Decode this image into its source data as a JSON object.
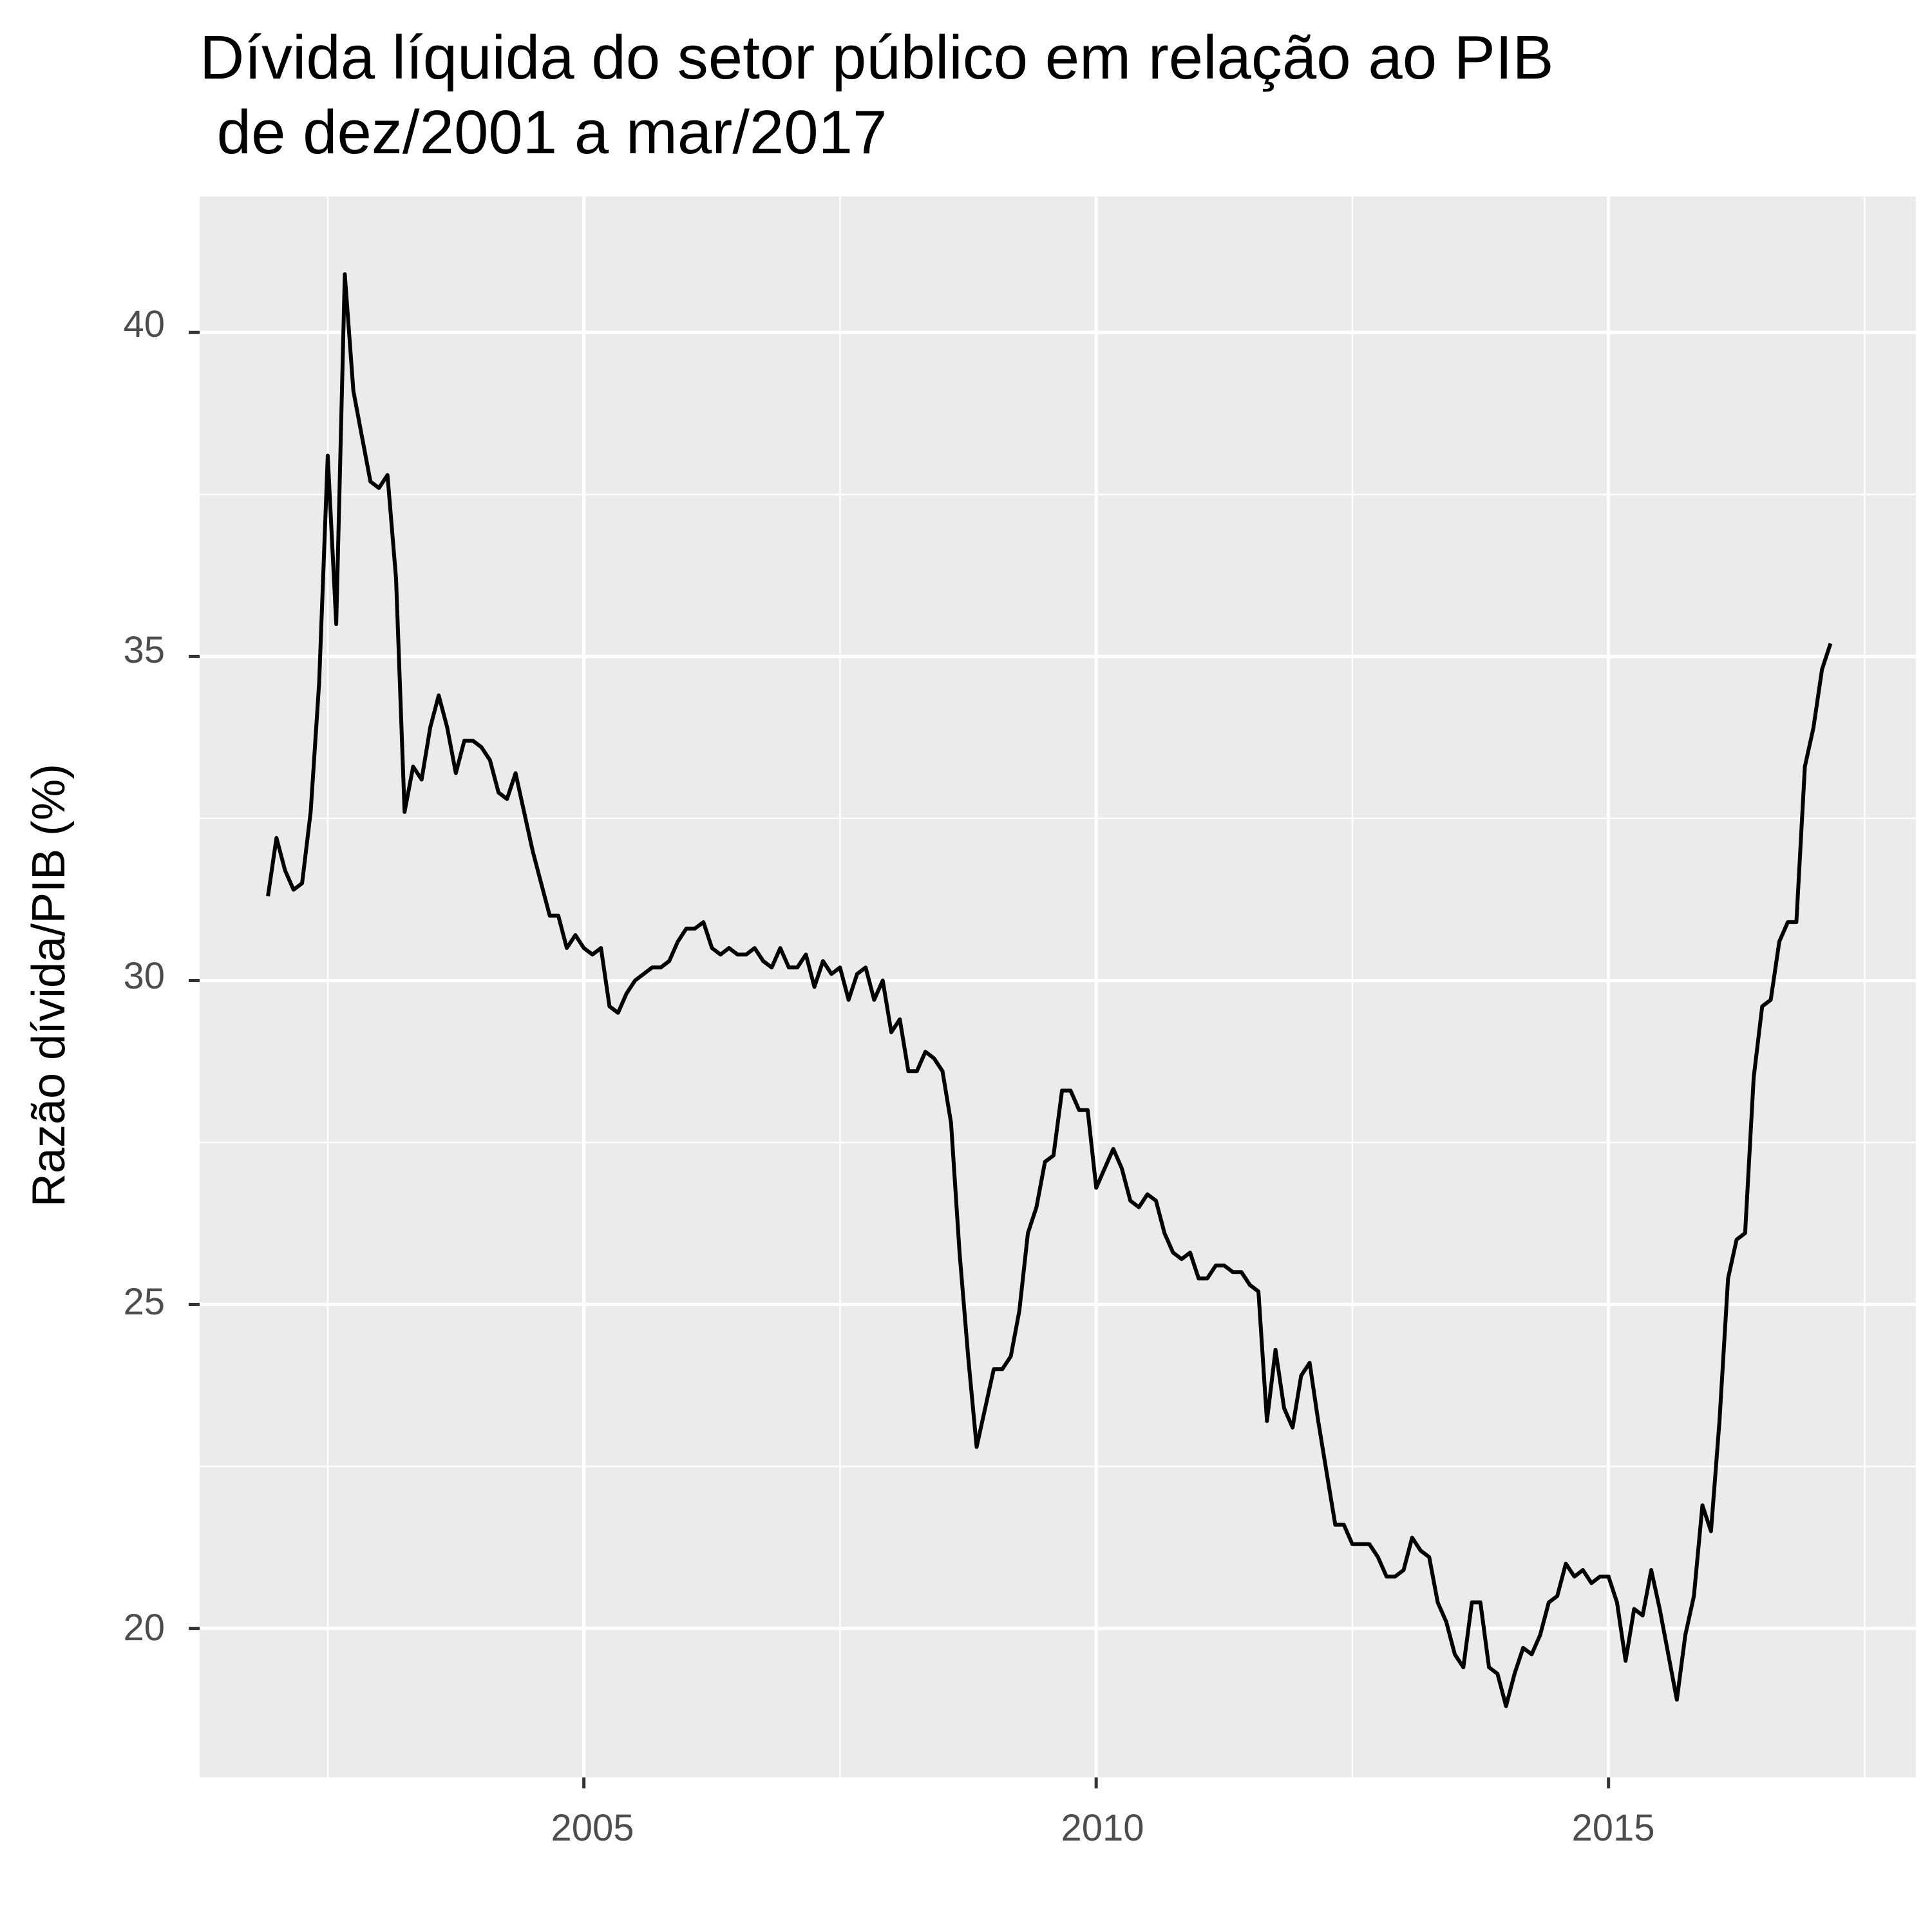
{
  "chart_data": {
    "type": "line",
    "title_lines": [
      "Dívida líquida do setor público em relação ao PIB",
      " de dez/2001 a mar/2017"
    ],
    "xlabel": "",
    "ylabel": "Razão dívida/PIB (%)",
    "x_ticks": [
      "2005",
      "2010",
      "2015"
    ],
    "y_ticks": [
      "20",
      "25",
      "30",
      "35",
      "40"
    ],
    "xlim": [
      "2001-04",
      "2018-01"
    ],
    "ylim": [
      17.7,
      42.1
    ],
    "grid": true,
    "legend": "none",
    "line_color": "#000000",
    "panel_color": "#ebebeb",
    "series": [
      {
        "x": [
          "2001-12",
          "2002-01",
          "2002-02",
          "2002-03",
          "2002-04",
          "2002-05",
          "2002-06",
          "2002-07",
          "2002-08",
          "2002-09",
          "2002-10",
          "2002-11",
          "2002-12",
          "2003-01",
          "2003-02",
          "2003-03",
          "2003-04",
          "2003-05",
          "2003-06",
          "2003-07",
          "2003-08",
          "2003-09",
          "2003-10",
          "2003-11",
          "2003-12",
          "2004-01",
          "2004-02",
          "2004-03",
          "2004-04",
          "2004-05",
          "2004-06",
          "2004-07",
          "2004-08",
          "2004-09",
          "2004-10",
          "2004-11",
          "2004-12",
          "2005-01",
          "2005-02",
          "2005-03",
          "2005-04",
          "2005-05",
          "2005-06",
          "2005-07",
          "2005-08",
          "2005-09",
          "2005-10",
          "2005-11",
          "2005-12",
          "2006-01",
          "2006-02",
          "2006-03",
          "2006-04",
          "2006-05",
          "2006-06",
          "2006-07",
          "2006-08",
          "2006-09",
          "2006-10",
          "2006-11",
          "2006-12",
          "2007-01",
          "2007-02",
          "2007-03",
          "2007-04",
          "2007-05",
          "2007-06",
          "2007-07",
          "2007-08",
          "2007-09",
          "2007-10",
          "2007-11",
          "2007-12",
          "2008-01",
          "2008-02",
          "2008-03",
          "2008-04",
          "2008-05",
          "2008-06",
          "2008-07",
          "2008-08",
          "2008-09",
          "2008-10",
          "2008-11",
          "2008-12",
          "2009-01",
          "2009-02",
          "2009-03",
          "2009-04",
          "2009-05",
          "2009-06",
          "2009-07",
          "2009-08",
          "2009-09",
          "2009-10",
          "2009-11",
          "2009-12",
          "2010-01",
          "2010-02",
          "2010-03",
          "2010-04",
          "2010-05",
          "2010-06",
          "2010-07",
          "2010-08",
          "2010-09",
          "2010-10",
          "2010-11",
          "2010-12",
          "2011-01",
          "2011-02",
          "2011-03",
          "2011-04",
          "2011-05",
          "2011-06",
          "2011-07",
          "2011-08",
          "2011-09",
          "2011-10",
          "2011-11",
          "2011-12",
          "2012-01",
          "2012-02",
          "2012-03",
          "2012-04",
          "2012-05",
          "2012-06",
          "2012-07",
          "2012-08",
          "2012-09",
          "2012-10",
          "2012-11",
          "2012-12",
          "2013-01",
          "2013-02",
          "2013-03",
          "2013-04",
          "2013-05",
          "2013-06",
          "2013-07",
          "2013-08",
          "2013-09",
          "2013-10",
          "2013-11",
          "2013-12",
          "2014-01",
          "2014-02",
          "2014-03",
          "2014-04",
          "2014-05",
          "2014-06",
          "2014-07",
          "2014-08",
          "2014-09",
          "2014-10",
          "2014-11",
          "2014-12",
          "2015-01",
          "2015-02",
          "2015-03",
          "2015-04",
          "2015-05",
          "2015-06",
          "2015-07",
          "2015-08",
          "2015-09",
          "2015-10",
          "2015-11",
          "2015-12",
          "2016-01",
          "2016-02",
          "2016-03",
          "2016-04",
          "2016-05",
          "2016-06",
          "2016-07",
          "2016-08",
          "2016-09",
          "2016-10",
          "2016-11",
          "2016-12",
          "2017-01",
          "2017-02",
          "2017-03"
        ],
        "values": [
          31.3,
          32.2,
          31.7,
          31.4,
          31.5,
          32.6,
          34.6,
          38.1,
          35.5,
          40.9,
          39.1,
          38.4,
          37.7,
          37.6,
          37.8,
          36.2,
          32.6,
          33.3,
          33.1,
          33.9,
          34.4,
          33.9,
          33.2,
          33.7,
          33.7,
          33.6,
          33.4,
          32.9,
          32.8,
          33.2,
          32.6,
          32.0,
          31.5,
          31.0,
          31.0,
          30.5,
          30.7,
          30.5,
          30.4,
          30.5,
          29.6,
          29.5,
          29.8,
          30.0,
          30.1,
          30.2,
          30.2,
          30.3,
          30.6,
          30.8,
          30.8,
          30.9,
          30.5,
          30.4,
          30.5,
          30.4,
          30.4,
          30.5,
          30.3,
          30.2,
          30.5,
          30.2,
          30.2,
          30.4,
          29.9,
          30.3,
          30.1,
          30.2,
          29.7,
          30.1,
          30.2,
          29.7,
          30.0,
          29.2,
          29.4,
          28.6,
          28.6,
          28.9,
          28.8,
          28.6,
          27.8,
          25.8,
          24.2,
          22.8,
          23.4,
          24.0,
          24.0,
          24.2,
          24.9,
          26.1,
          26.5,
          27.2,
          27.3,
          28.3,
          28.3,
          28.0,
          28.0,
          26.8,
          27.1,
          27.4,
          27.1,
          26.6,
          26.5,
          26.7,
          26.6,
          26.1,
          25.8,
          25.7,
          25.8,
          25.4,
          25.4,
          25.6,
          25.6,
          25.5,
          25.5,
          25.3,
          25.2,
          23.2,
          24.3,
          23.4,
          23.1,
          23.9,
          24.1,
          23.2,
          22.4,
          21.6,
          21.6,
          21.3,
          21.3,
          21.3,
          21.1,
          20.8,
          20.8,
          20.9,
          21.4,
          21.2,
          21.1,
          20.4,
          20.1,
          19.6,
          19.4,
          20.4,
          20.4,
          19.4,
          19.3,
          18.8,
          19.3,
          19.7,
          19.6,
          19.9,
          20.4,
          20.5,
          21.0,
          20.8,
          20.9,
          20.7,
          20.8,
          20.8,
          20.4,
          19.5,
          20.3,
          20.2,
          20.9,
          20.3,
          19.6,
          18.9,
          19.9,
          20.5,
          21.9,
          21.5,
          23.2,
          25.4,
          26.0,
          26.1,
          28.5,
          29.6,
          29.7,
          30.6,
          30.9,
          30.9,
          33.3,
          33.9,
          34.8,
          35.2
        ]
      }
    ]
  }
}
